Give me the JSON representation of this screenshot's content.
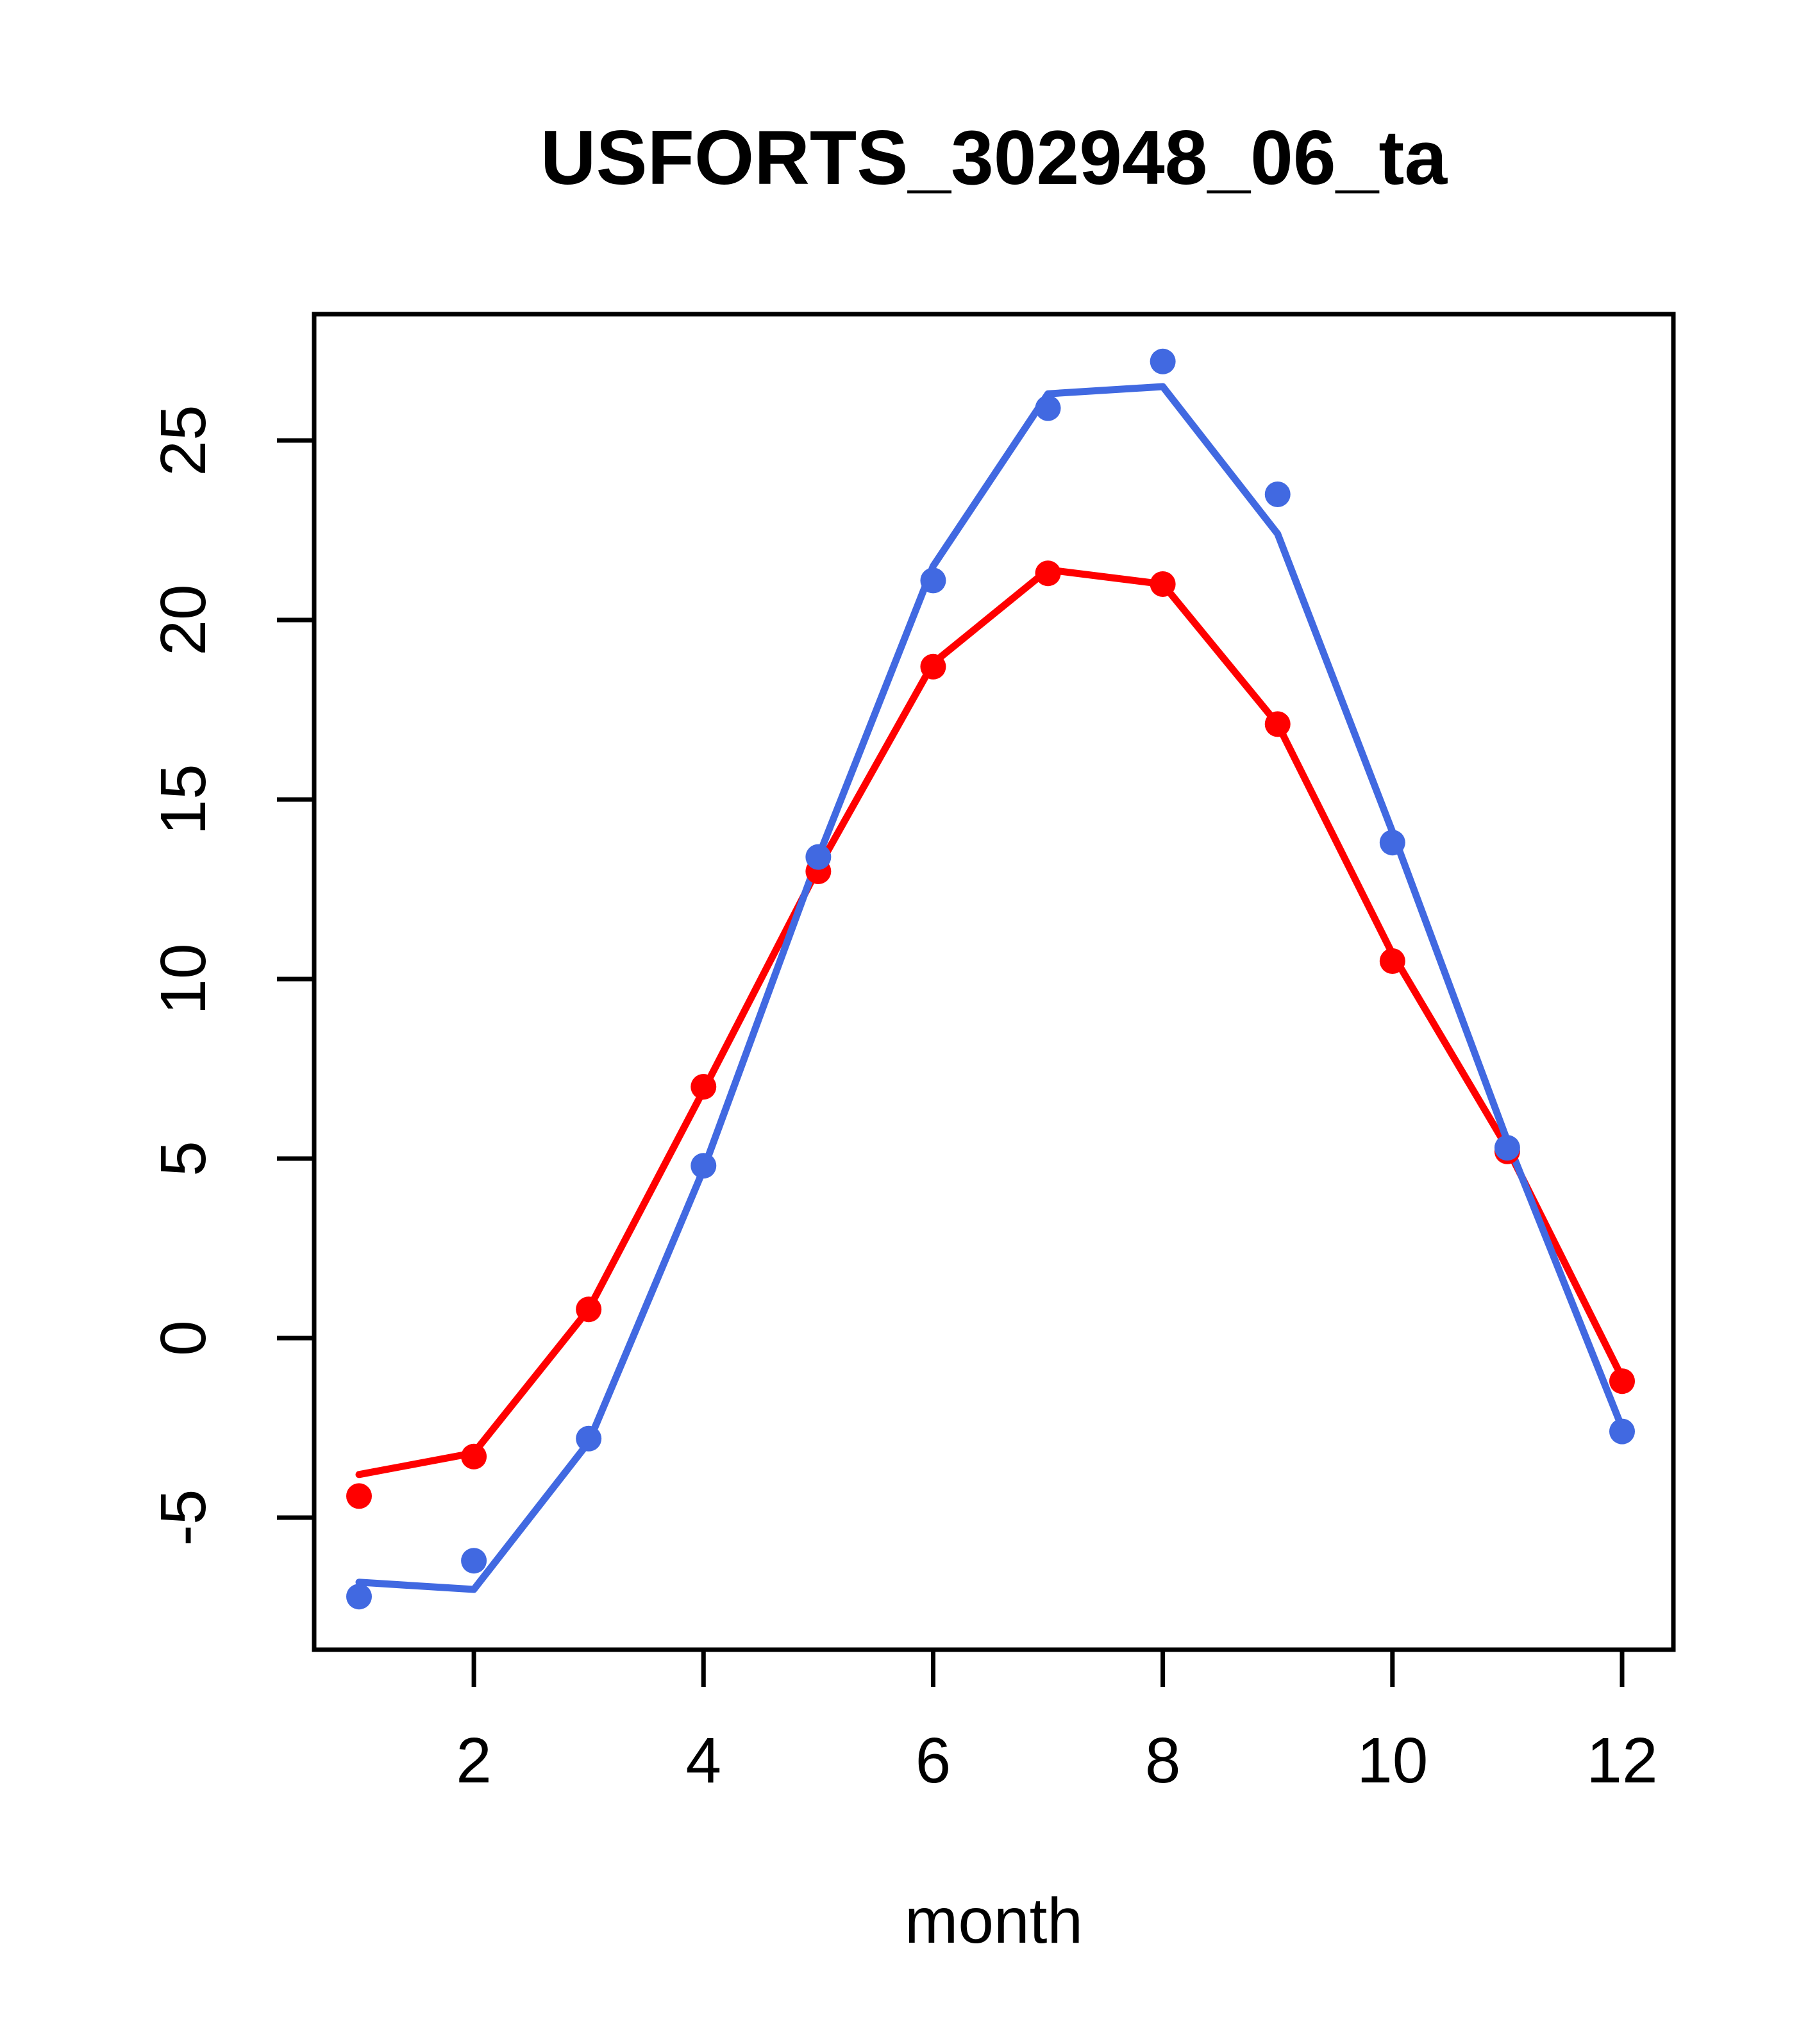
{
  "chart_data": {
    "type": "line",
    "title": "USFORTS_302948_06_ta",
    "xlabel": "month",
    "ylabel": "",
    "grid": false,
    "legend": "none",
    "x": [
      1,
      2,
      3,
      4,
      5,
      6,
      7,
      8,
      9,
      10,
      11,
      12
    ],
    "xticks": [
      2,
      4,
      6,
      8,
      10,
      12
    ],
    "yticks": [
      -5,
      0,
      5,
      10,
      15,
      20,
      25
    ],
    "xlim": [
      0.6,
      12.4
    ],
    "ylim": [
      -8.7,
      28.5
    ],
    "colors": {
      "red": "#ff0000",
      "blue": "#4169e1",
      "axis": "#000000",
      "background": "#ffffff"
    },
    "series": [
      {
        "name": "red fitted line",
        "type": "line",
        "color": "#ff0000",
        "values": [
          -3.8,
          -3.2,
          0.8,
          6.9,
          13.1,
          18.8,
          21.4,
          21.0,
          17.1,
          10.7,
          5.3,
          -1.1
        ]
      },
      {
        "name": "blue fitted line",
        "type": "line",
        "color": "#4169e1",
        "values": [
          -6.8,
          -7.0,
          -2.9,
          4.7,
          13.4,
          21.5,
          26.3,
          26.5,
          22.4,
          14.1,
          5.5,
          -2.5
        ]
      },
      {
        "name": "red observed points",
        "type": "scatter",
        "color": "#ff0000",
        "values": [
          -4.4,
          -3.3,
          0.8,
          7.0,
          13.0,
          18.7,
          21.3,
          21.0,
          17.1,
          10.5,
          5.2,
          -1.2
        ]
      },
      {
        "name": "blue observed points",
        "type": "scatter",
        "color": "#4169e1",
        "values": [
          -7.2,
          -6.2,
          -2.8,
          4.8,
          13.4,
          21.1,
          25.9,
          27.2,
          23.5,
          13.8,
          5.3,
          -2.6
        ]
      }
    ]
  }
}
